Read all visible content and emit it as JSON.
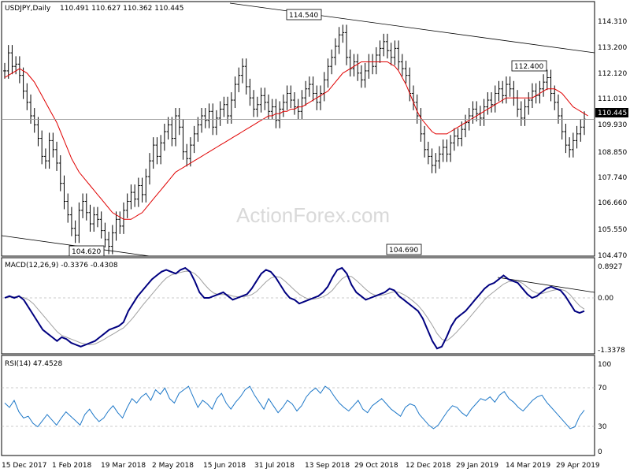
{
  "chart_data": [
    {
      "type": "ohlc",
      "title": "USDJPY,Daily",
      "ohlc_label": "110.491 110.627 110.362 110.445",
      "last_price": "110.445",
      "watermark": "ActionForex.com",
      "ylim": [
        104.47,
        115.4
      ],
      "y_ticks": [
        "114.310",
        "113.200",
        "112.120",
        "111.010",
        "109.930",
        "108.850",
        "107.740",
        "106.660",
        "105.550",
        "104.470"
      ],
      "x_ticks": [
        "15 Dec 2017",
        "1 Feb 2018",
        "19 Mar 2018",
        "2 May 2018",
        "15 Jun 2018",
        "31 Jul 2018",
        "13 Sep 2018",
        "29 Oct 2018",
        "12 Dec 2018",
        "29 Jan 2019",
        "14 Mar 2019",
        "29 Apr 2019"
      ],
      "annotations": [
        {
          "label": "114.540",
          "value": 114.54
        },
        {
          "label": "104.620",
          "value": 104.62
        },
        {
          "label": "104.690",
          "value": 104.69
        },
        {
          "label": "112.400",
          "value": 112.4
        }
      ],
      "close_series": [
        112.6,
        113.4,
        112.8,
        112.9,
        112.4,
        111.7,
        111.2,
        110.6,
        110.2,
        109.6,
        108.8,
        108.6,
        109.5,
        109.1,
        108.5,
        107.6,
        106.8,
        106.2,
        105.6,
        105.3,
        106.4,
        106.8,
        106.3,
        105.8,
        106.2,
        106.0,
        105.5,
        105.1,
        104.8,
        105.4,
        106.0,
        105.7,
        106.4,
        106.8,
        107.2,
        106.9,
        107.5,
        107.1,
        107.9,
        108.6,
        109.3,
        108.8,
        109.4,
        109.9,
        110.2,
        109.6,
        110.6,
        110.1,
        109.0,
        108.7,
        109.3,
        109.8,
        110.2,
        110.6,
        110.4,
        110.8,
        110.1,
        110.5,
        110.9,
        111.1,
        110.6,
        111.3,
        112.0,
        112.4,
        112.8,
        111.9,
        111.4,
        110.9,
        111.1,
        111.5,
        111.2,
        110.8,
        111.0,
        110.4,
        110.9,
        111.2,
        111.6,
        111.3,
        111.0,
        110.8,
        111.4,
        111.8,
        112.0,
        111.6,
        111.2,
        111.6,
        112.2,
        112.8,
        113.2,
        113.7,
        114.2,
        114.3,
        113.2,
        112.7,
        113.0,
        112.5,
        112.2,
        112.6,
        113.0,
        112.8,
        113.3,
        113.6,
        113.9,
        113.5,
        113.2,
        113.6,
        113.0,
        112.7,
        112.4,
        111.6,
        111.2,
        110.6,
        109.8,
        109.1,
        108.8,
        108.4,
        108.6,
        108.9,
        109.2,
        108.9,
        109.4,
        109.7,
        109.6,
        110.0,
        110.3,
        110.6,
        110.9,
        110.7,
        110.5,
        111.0,
        111.3,
        111.1,
        111.6,
        111.8,
        111.5,
        112.0,
        111.8,
        111.4,
        110.9,
        110.5,
        111.0,
        111.3,
        111.7,
        111.5,
        111.8,
        112.1,
        112.3,
        111.6,
        111.2,
        110.6,
        109.9,
        109.3,
        109.1,
        109.5,
        109.8,
        110.1,
        110.45
      ],
      "ma_series": [
        112.3,
        112.4,
        112.5,
        112.6,
        112.7,
        112.6,
        112.5,
        112.3,
        112.1,
        111.8,
        111.5,
        111.2,
        110.9,
        110.6,
        110.3,
        109.9,
        109.5,
        109.1,
        108.7,
        108.4,
        108.1,
        107.9,
        107.7,
        107.5,
        107.3,
        107.1,
        106.9,
        106.7,
        106.5,
        106.3,
        106.2,
        106.1,
        106.0,
        106.0,
        106.0,
        106.1,
        106.2,
        106.3,
        106.5,
        106.7,
        106.9,
        107.1,
        107.3,
        107.5,
        107.7,
        107.9,
        108.1,
        108.2,
        108.3,
        108.4,
        108.5,
        108.6,
        108.7,
        108.8,
        108.9,
        109.0,
        109.1,
        109.2,
        109.3,
        109.4,
        109.5,
        109.6,
        109.7,
        109.8,
        109.9,
        110.0,
        110.1,
        110.2,
        110.3,
        110.4,
        110.5,
        110.6,
        110.6,
        110.7,
        110.7,
        110.8,
        110.8,
        110.9,
        110.9,
        111.0,
        111.0,
        111.1,
        111.2,
        111.3,
        111.4,
        111.5,
        111.6,
        111.7,
        111.9,
        112.1,
        112.3,
        112.5,
        112.6,
        112.7,
        112.8,
        112.9,
        113.0,
        113.0,
        113.0,
        113.0,
        113.0,
        113.0,
        113.0,
        113.0,
        112.9,
        112.8,
        112.6,
        112.3,
        112.0,
        111.6,
        111.2,
        110.8,
        110.5,
        110.3,
        110.1,
        109.9,
        109.8,
        109.8,
        109.8,
        109.8,
        109.9,
        110.0,
        110.1,
        110.2,
        110.3,
        110.4,
        110.5,
        110.6,
        110.7,
        110.8,
        110.9,
        111.0,
        111.1,
        111.2,
        111.3,
        111.4,
        111.4,
        111.4,
        111.4,
        111.4,
        111.4,
        111.4,
        111.4,
        111.5,
        111.6,
        111.7,
        111.8,
        111.8,
        111.8,
        111.7,
        111.6,
        111.4,
        111.2,
        111.0,
        110.9,
        110.8,
        110.7,
        110.6
      ]
    },
    {
      "type": "line",
      "title": "MACD(12,26,9) -0.3376 -0.4308",
      "ylim": [
        -1.3378,
        0.8927
      ],
      "y_ticks": [
        "0.8927",
        "0.00",
        "-1.3378"
      ],
      "macd_series": [
        0.05,
        0.1,
        0.05,
        0.1,
        0.0,
        -0.2,
        -0.4,
        -0.6,
        -0.8,
        -0.9,
        -1.0,
        -1.1,
        -1.0,
        -1.05,
        -1.15,
        -1.2,
        -1.25,
        -1.2,
        -1.15,
        -1.1,
        -1.0,
        -0.9,
        -0.8,
        -0.75,
        -0.7,
        -0.6,
        -0.3,
        -0.1,
        0.1,
        0.25,
        0.4,
        0.55,
        0.65,
        0.75,
        0.8,
        0.75,
        0.7,
        0.8,
        0.85,
        0.75,
        0.5,
        0.2,
        0.05,
        0.05,
        0.1,
        0.15,
        0.2,
        0.1,
        0.0,
        0.05,
        0.1,
        0.15,
        0.3,
        0.5,
        0.7,
        0.8,
        0.75,
        0.6,
        0.4,
        0.2,
        0.05,
        0.0,
        -0.1,
        -0.05,
        0.0,
        0.05,
        0.1,
        0.2,
        0.35,
        0.6,
        0.8,
        0.85,
        0.7,
        0.4,
        0.2,
        0.1,
        0.0,
        0.05,
        0.1,
        0.15,
        0.2,
        0.3,
        0.25,
        0.1,
        0.0,
        -0.1,
        -0.2,
        -0.3,
        -0.5,
        -0.8,
        -1.1,
        -1.3,
        -1.25,
        -1.0,
        -0.7,
        -0.5,
        -0.4,
        -0.3,
        -0.15,
        0.0,
        0.15,
        0.3,
        0.4,
        0.45,
        0.55,
        0.65,
        0.55,
        0.5,
        0.45,
        0.3,
        0.15,
        0.05,
        0.1,
        0.2,
        0.3,
        0.35,
        0.3,
        0.25,
        0.1,
        -0.1,
        -0.3,
        -0.35,
        -0.3
      ],
      "signal_series": [
        0.05,
        0.07,
        0.08,
        0.08,
        0.06,
        0.0,
        -0.1,
        -0.25,
        -0.4,
        -0.55,
        -0.7,
        -0.85,
        -0.95,
        -1.0,
        -1.05,
        -1.1,
        -1.15,
        -1.18,
        -1.2,
        -1.18,
        -1.12,
        -1.05,
        -0.97,
        -0.9,
        -0.82,
        -0.75,
        -0.62,
        -0.48,
        -0.32,
        -0.15,
        0.0,
        0.15,
        0.3,
        0.45,
        0.58,
        0.66,
        0.7,
        0.73,
        0.76,
        0.76,
        0.7,
        0.58,
        0.42,
        0.28,
        0.18,
        0.14,
        0.14,
        0.14,
        0.1,
        0.08,
        0.08,
        0.1,
        0.14,
        0.22,
        0.35,
        0.48,
        0.58,
        0.62,
        0.6,
        0.5,
        0.38,
        0.26,
        0.15,
        0.07,
        0.02,
        0.02,
        0.04,
        0.08,
        0.15,
        0.26,
        0.42,
        0.56,
        0.64,
        0.62,
        0.52,
        0.4,
        0.28,
        0.18,
        0.12,
        0.12,
        0.14,
        0.18,
        0.22,
        0.2,
        0.14,
        0.06,
        -0.04,
        -0.15,
        -0.3,
        -0.48,
        -0.68,
        -0.9,
        -1.05,
        -1.1,
        -1.0,
        -0.88,
        -0.74,
        -0.6,
        -0.45,
        -0.3,
        -0.15,
        0.0,
        0.12,
        0.22,
        0.32,
        0.42,
        0.48,
        0.5,
        0.5,
        0.44,
        0.34,
        0.24,
        0.18,
        0.16,
        0.2,
        0.24,
        0.27,
        0.28,
        0.24,
        0.14,
        -0.02,
        -0.16,
        -0.25
      ]
    },
    {
      "type": "line",
      "title": "RSI(14) 47.4528",
      "ylim": [
        0,
        100
      ],
      "y_ticks": [
        "100",
        "70",
        "30",
        "0"
      ],
      "levels": [
        70,
        30
      ],
      "rsi_series": [
        55,
        50,
        58,
        45,
        38,
        40,
        32,
        28,
        35,
        42,
        36,
        30,
        38,
        45,
        40,
        35,
        30,
        42,
        48,
        40,
        34,
        38,
        46,
        52,
        44,
        38,
        50,
        60,
        55,
        62,
        66,
        58,
        70,
        65,
        72,
        60,
        55,
        66,
        70,
        74,
        62,
        50,
        58,
        54,
        48,
        60,
        66,
        55,
        48,
        56,
        62,
        70,
        74,
        64,
        56,
        48,
        60,
        52,
        44,
        50,
        58,
        54,
        46,
        52,
        62,
        68,
        72,
        66,
        74,
        70,
        62,
        55,
        50,
        46,
        52,
        58,
        48,
        44,
        52,
        56,
        60,
        54,
        48,
        44,
        40,
        50,
        54,
        52,
        42,
        36,
        30,
        26,
        30,
        38,
        46,
        52,
        50,
        44,
        40,
        48,
        54,
        60,
        58,
        62,
        56,
        64,
        68,
        60,
        56,
        50,
        46,
        52,
        58,
        62,
        64,
        56,
        50,
        44,
        38,
        32,
        26,
        28,
        40,
        47
      ]
    }
  ]
}
